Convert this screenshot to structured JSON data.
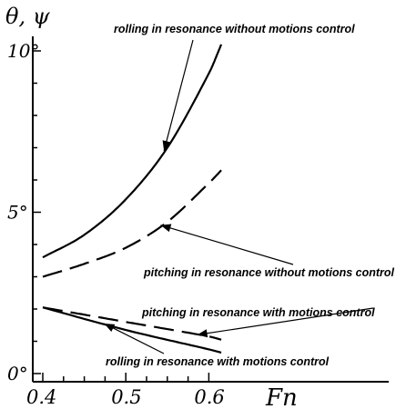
{
  "chart_data": {
    "type": "line",
    "ylabel": "θ, ψ",
    "xlabel": "Fn",
    "x_ticks": [
      "0.4",
      "0.5",
      "0.6"
    ],
    "y_ticks": [
      "0°",
      "5°",
      "10°"
    ],
    "xlim": [
      0.4,
      0.62
    ],
    "ylim": [
      0,
      10
    ],
    "series": [
      {
        "key": "rolling_no_control",
        "name": "rolling in resonance without motions control",
        "style": "solid",
        "x": [
          0.4,
          0.45,
          0.5,
          0.55,
          0.6,
          0.615
        ],
        "y": [
          3.6,
          4.3,
          5.4,
          7.0,
          9.3,
          10.2
        ]
      },
      {
        "key": "pitching_no_control",
        "name": "pitching in resonance without motions control",
        "style": "dashed",
        "x": [
          0.4,
          0.45,
          0.5,
          0.55,
          0.6,
          0.615
        ],
        "y": [
          3.0,
          3.4,
          3.9,
          4.7,
          5.9,
          6.3
        ]
      },
      {
        "key": "pitching_control",
        "name": "pitching in resonance with motions control",
        "style": "dashed",
        "x": [
          0.4,
          0.5,
          0.6,
          0.615
        ],
        "y": [
          2.05,
          1.6,
          1.15,
          1.05
        ]
      },
      {
        "key": "rolling_control",
        "name": "rolling in resonance with motions control",
        "style": "solid",
        "x": [
          0.4,
          0.5,
          0.6,
          0.615
        ],
        "y": [
          2.05,
          1.35,
          0.75,
          0.65
        ]
      }
    ],
    "annotations": [
      {
        "series": "rolling_no_control",
        "text": "rolling in resonance without motions control",
        "arrow_to": [
          0.546,
          6.9
        ]
      },
      {
        "series": "pitching_no_control",
        "text": "pitching in resonance without motions control",
        "arrow_to": [
          0.542,
          4.6
        ]
      },
      {
        "series": "pitching_control",
        "text": "pitching in resonance with motions control",
        "arrow_to": [
          0.586,
          1.2
        ]
      },
      {
        "series": "rolling_control",
        "text": "rolling in resonance with motions control",
        "arrow_to": [
          0.474,
          1.55
        ]
      }
    ],
    "grid": false,
    "legend": "none"
  }
}
